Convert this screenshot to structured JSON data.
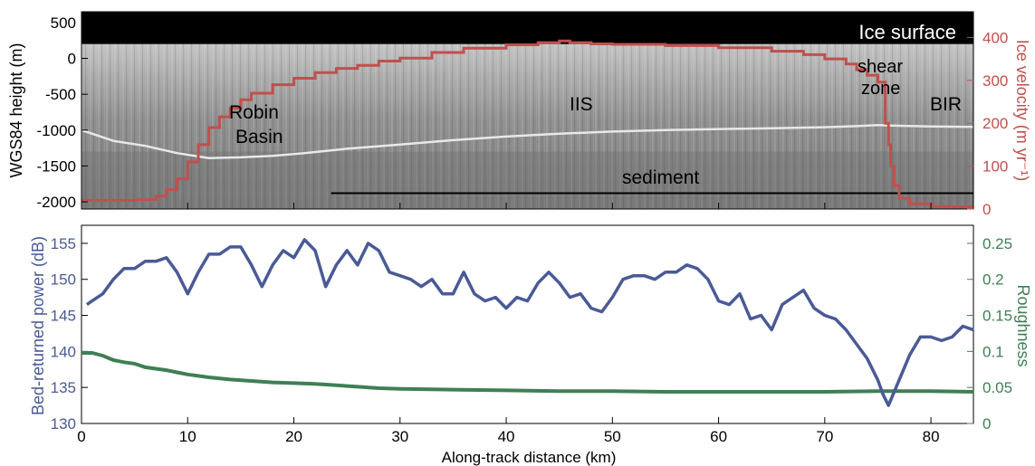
{
  "chart_data": [
    {
      "type": "line",
      "panel": "radargram",
      "background": "radar echogram (grayscale)",
      "xlim": [
        0,
        84
      ],
      "x_ticks": [
        0,
        10,
        20,
        30,
        40,
        50,
        60,
        70,
        80
      ],
      "ylabel": "WGS84 height (m)",
      "ylim": [
        -2100,
        650
      ],
      "y_ticks": [
        -2000,
        -1500,
        -1000,
        -500,
        0,
        500
      ],
      "y2label": "Ice velocity (m yr⁻¹)",
      "y2lim": [
        0,
        460
      ],
      "y2_ticks": [
        0,
        100,
        200,
        300,
        400
      ],
      "annotations": {
        "ice_surface": "Ice surface",
        "robin_basin_1": "Robin",
        "robin_basin_2": "Basin",
        "iis": "IIS",
        "shear_1": "shear",
        "shear_2": "zone",
        "bir": "BIR",
        "sediment": "sediment"
      },
      "ice_surface_height": 200,
      "sediment_bar": {
        "x": [
          23.5,
          84
        ],
        "y": -1880
      },
      "colors": {
        "velocity": "#c0504d",
        "surface_band": "#000000",
        "sediment_bar": "#000000",
        "bed_reflector": "#e8e8e8"
      },
      "bed_reflector": {
        "x": [
          0,
          3,
          6,
          9,
          12,
          15,
          18,
          21,
          25,
          30,
          35,
          40,
          45,
          50,
          55,
          60,
          65,
          70,
          73,
          75,
          77,
          80,
          84
        ],
        "y": [
          -1000,
          -1150,
          -1220,
          -1320,
          -1390,
          -1380,
          -1360,
          -1320,
          -1260,
          -1200,
          -1140,
          -1090,
          -1050,
          -1020,
          -1000,
          -985,
          -975,
          -960,
          -945,
          -930,
          -940,
          -950,
          -955
        ]
      },
      "series": [
        {
          "name": "Ice velocity",
          "axis": "right",
          "x": [
            0,
            3,
            5,
            7,
            8,
            9,
            10,
            11,
            12,
            13,
            14,
            15,
            16,
            18,
            20,
            22,
            24,
            26,
            28,
            30,
            33,
            36,
            40,
            43,
            45,
            46,
            48,
            50,
            55,
            60,
            65,
            68,
            70,
            72,
            73,
            74,
            75,
            75.5,
            75.7,
            76,
            76.2,
            76.5,
            77,
            78,
            80,
            82,
            84
          ],
          "values": [
            20,
            20,
            22,
            30,
            45,
            70,
            110,
            150,
            190,
            215,
            235,
            255,
            270,
            290,
            305,
            318,
            328,
            335,
            345,
            352,
            365,
            375,
            383,
            388,
            392,
            388,
            385,
            384,
            381,
            376,
            368,
            360,
            350,
            338,
            325,
            312,
            296,
            296,
            200,
            150,
            100,
            55,
            25,
            12,
            6,
            5,
            8
          ]
        }
      ]
    },
    {
      "type": "line",
      "panel": "bed properties",
      "xlabel": "Along-track distance (km)",
      "xlim": [
        0,
        84
      ],
      "x_ticks": [
        0,
        10,
        20,
        30,
        40,
        50,
        60,
        70,
        80
      ],
      "ylabel": "Bed-returned power (dB)",
      "ylim": [
        130,
        157.5
      ],
      "y_ticks": [
        130,
        135,
        140,
        145,
        150,
        155
      ],
      "y2label": "Roughness",
      "y2lim": [
        0,
        0.275
      ],
      "y2_ticks": [
        "0",
        "0.05",
        "0.1",
        "0.15",
        "0.2",
        "0.25"
      ],
      "colors": {
        "power": "#4a5a96",
        "roughness": "#3f7f55"
      },
      "series": [
        {
          "name": "Bed-returned power",
          "axis": "left",
          "x": [
            0.5,
            1,
            2,
            3,
            4,
            5,
            6,
            7,
            8,
            9,
            10,
            11,
            12,
            13,
            14,
            15,
            16,
            17,
            18,
            19,
            20,
            21,
            22,
            23,
            24,
            25,
            26,
            27,
            28,
            29,
            30,
            31,
            32,
            33,
            34,
            35,
            36,
            37,
            38,
            39,
            40,
            41,
            42,
            43,
            44,
            45,
            46,
            47,
            48,
            49,
            50,
            51,
            52,
            53,
            54,
            55,
            56,
            57,
            58,
            59,
            60,
            61,
            62,
            63,
            64,
            65,
            66,
            67,
            68,
            69,
            70,
            71,
            72,
            73,
            74,
            75,
            75.5,
            76,
            77,
            78,
            79,
            80,
            81,
            82,
            83,
            84
          ],
          "values": [
            146.5,
            147,
            148,
            150,
            151.5,
            151.5,
            152.5,
            152.5,
            153,
            151,
            148,
            151,
            153.5,
            153.5,
            154.5,
            154.5,
            152,
            149,
            152,
            154,
            153,
            155.5,
            154,
            149,
            152,
            154,
            152,
            155,
            154,
            151,
            150.5,
            150,
            149,
            150,
            148,
            148,
            151,
            148,
            147,
            147.5,
            146,
            147.5,
            147,
            149.5,
            151,
            149.5,
            147.5,
            148,
            146,
            145.5,
            147.5,
            150,
            150.5,
            150.5,
            150,
            151,
            151,
            152,
            151.5,
            150,
            147,
            146.5,
            148,
            144.5,
            145,
            143,
            146.5,
            147.5,
            148.5,
            146,
            145,
            144.5,
            143,
            141,
            139,
            136,
            134,
            132.5,
            136,
            139.5,
            142,
            142,
            141.5,
            142,
            143.5,
            143
          ]
        },
        {
          "name": "Roughness",
          "axis": "right",
          "x": [
            0,
            1,
            2,
            3,
            4,
            5,
            6,
            7,
            8,
            9,
            10,
            12,
            14,
            16,
            18,
            20,
            22,
            24,
            26,
            28,
            30,
            35,
            40,
            45,
            50,
            55,
            60,
            65,
            70,
            75,
            80,
            84
          ],
          "values": [
            0.098,
            0.098,
            0.094,
            0.088,
            0.085,
            0.083,
            0.078,
            0.076,
            0.074,
            0.071,
            0.068,
            0.064,
            0.061,
            0.059,
            0.057,
            0.056,
            0.055,
            0.053,
            0.051,
            0.049,
            0.048,
            0.047,
            0.046,
            0.045,
            0.045,
            0.044,
            0.044,
            0.044,
            0.044,
            0.045,
            0.045,
            0.044
          ]
        }
      ]
    }
  ]
}
